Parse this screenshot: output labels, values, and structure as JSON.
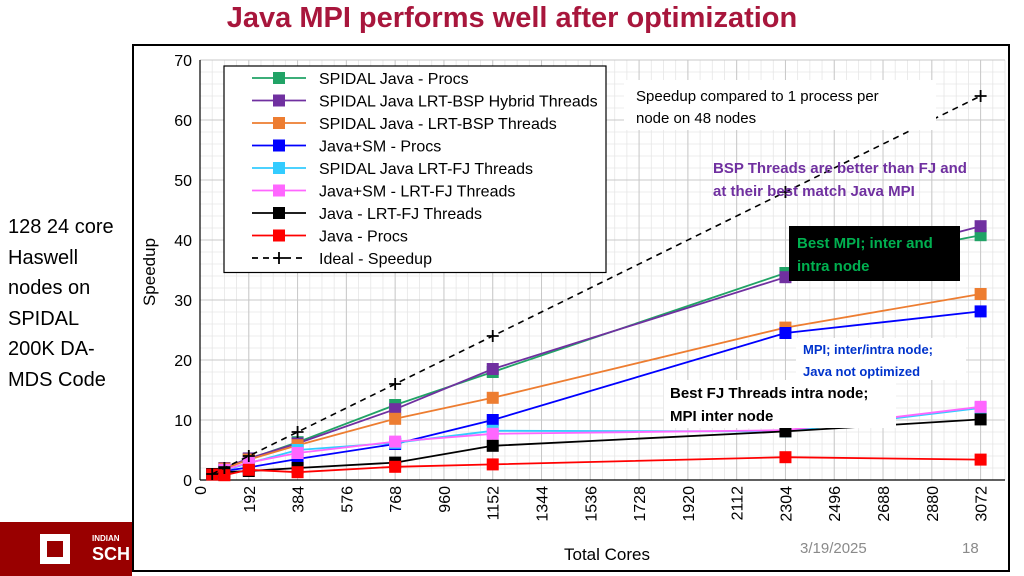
{
  "slide": {
    "title": "Java MPI performs well after optimization",
    "side_note": "128 24 core Haswell nodes on SPIDAL 200K DA-MDS Code",
    "date": "3/19/2025",
    "page_number": "18",
    "logo_org_line1": "INDIAN",
    "logo_org_line2": "SCH"
  },
  "colors": {
    "title": "#a8163c",
    "footer": "#990000",
    "purple_note": "#7030a0",
    "green_note": "#00b050",
    "blue_note": "#0033cc"
  },
  "chart_data": {
    "type": "line",
    "title": "",
    "xlabel": "Total Cores",
    "ylabel": "Speedup",
    "xlim": [
      0,
      3168
    ],
    "ylim": [
      0,
      70
    ],
    "xticks": [
      0,
      192,
      384,
      576,
      768,
      960,
      1152,
      1344,
      1536,
      1728,
      1920,
      2112,
      2304,
      2496,
      2688,
      2880,
      3072
    ],
    "yticks": [
      0,
      10,
      20,
      30,
      40,
      50,
      60,
      70
    ],
    "grid": true,
    "legend_position": "top-left",
    "series": [
      {
        "name": "SPIDAL Java - Procs",
        "color": "#21a366",
        "marker": "square",
        "x": [
          48,
          96,
          192,
          384,
          768,
          1152,
          2304,
          3072
        ],
        "y": [
          1,
          1.9,
          3.5,
          6.3,
          12.5,
          18,
          34.5,
          40.8
        ]
      },
      {
        "name": "SPIDAL Java LRT-BSP Hybrid Threads",
        "color": "#7030a0",
        "marker": "square",
        "x": [
          48,
          96,
          192,
          384,
          768,
          1152,
          2304,
          3072
        ],
        "y": [
          1,
          2,
          3.6,
          6.1,
          11.8,
          18.5,
          33.8,
          42.3
        ]
      },
      {
        "name": "SPIDAL Java - LRT-BSP Threads",
        "color": "#ed7d31",
        "marker": "square",
        "x": [
          48,
          96,
          192,
          384,
          768,
          1152,
          2304,
          3072
        ],
        "y": [
          1,
          1.9,
          3.4,
          5.8,
          10.2,
          13.7,
          25.4,
          31
        ]
      },
      {
        "name": "Java+SM - Procs",
        "color": "#0000ff",
        "marker": "square",
        "x": [
          48,
          96,
          192,
          384,
          768,
          1152,
          2304,
          3072
        ],
        "y": [
          1,
          1.5,
          2.1,
          3.5,
          6,
          10,
          24.5,
          28.1
        ]
      },
      {
        "name": "SPIDAL Java LRT-FJ Threads",
        "color": "#33ccff",
        "marker": "square",
        "x": [
          48,
          96,
          192,
          384,
          768,
          1152,
          2304,
          3072
        ],
        "y": [
          1,
          1.6,
          2.8,
          5,
          6.2,
          8.2,
          8.1,
          12
        ]
      },
      {
        "name": "Java+SM - LRT-FJ Threads",
        "color": "#ff66ff",
        "marker": "square",
        "x": [
          48,
          96,
          192,
          384,
          768,
          1152,
          2304,
          3072
        ],
        "y": [
          1,
          1.7,
          2.9,
          4.5,
          6.4,
          7.7,
          8.3,
          12.2
        ]
      },
      {
        "name": "Java - LRT-FJ Threads",
        "color": "#000000",
        "marker": "square",
        "x": [
          48,
          96,
          192,
          384,
          768,
          1152,
          2304,
          3072
        ],
        "y": [
          1,
          1.3,
          1.5,
          2,
          2.9,
          5.7,
          8.1,
          10.1
        ]
      },
      {
        "name": "Java - Procs",
        "color": "#ff0000",
        "marker": "square",
        "x": [
          48,
          96,
          192,
          384,
          768,
          1152,
          2304,
          3072
        ],
        "y": [
          0.9,
          0.8,
          1.7,
          1.3,
          2.2,
          2.6,
          3.8,
          3.4
        ]
      },
      {
        "name": "Ideal - Speedup",
        "color": "#000000",
        "marker": "plus",
        "dashed": true,
        "x": [
          48,
          96,
          192,
          384,
          768,
          1152,
          2304,
          3072
        ],
        "y": [
          1,
          2,
          4,
          8,
          16,
          24,
          48,
          64
        ]
      }
    ],
    "annotations": [
      {
        "text": "Speedup compared to 1 process per",
        "style": "plain"
      },
      {
        "text": "node on 48 nodes",
        "style": "plain"
      },
      {
        "text": "BSP Threads are better than FJ and",
        "style": "purple"
      },
      {
        "text": "at their best match Java MPI",
        "style": "purple"
      },
      {
        "text": "Best MPI; inter and",
        "style": "green-box"
      },
      {
        "text": "intra node",
        "style": "green-box"
      },
      {
        "text": "MPI; inter/intra node;",
        "style": "blue"
      },
      {
        "text": "Java not optimized",
        "style": "blue"
      },
      {
        "text": "Best FJ Threads intra node;",
        "style": "black-bold"
      },
      {
        "text": "MPI inter node",
        "style": "black-bold"
      }
    ]
  }
}
